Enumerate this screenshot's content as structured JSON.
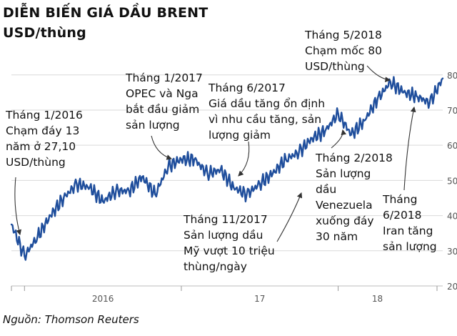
{
  "chart_data": {
    "type": "line",
    "title": "DIỄN BIẾN GIÁ DẦU BRENT",
    "subtitle": "USD/thùng",
    "source": "Nguồn: Thomson Reuters",
    "x_tick_labels": [
      "2016",
      "17",
      "18"
    ],
    "y_ticks": [
      20,
      30,
      40,
      50,
      60,
      70,
      80
    ],
    "ylim": [
      20,
      83
    ],
    "grid": true,
    "series": [
      {
        "color": "#1f4e9c",
        "x": [
          "2015-12",
          "2016-01",
          "2016-02",
          "2016-03",
          "2016-04",
          "2016-05",
          "2016-06",
          "2016-07",
          "2016-08",
          "2016-09",
          "2016-10",
          "2016-11",
          "2016-12",
          "2017-01",
          "2017-02",
          "2017-03",
          "2017-04",
          "2017-05",
          "2017-06",
          "2017-07",
          "2017-08",
          "2017-09",
          "2017-10",
          "2017-11",
          "2017-12",
          "2018-01",
          "2018-02",
          "2018-03",
          "2018-04",
          "2018-05",
          "2018-06",
          "2018-07",
          "2018-08",
          "2018-09"
        ],
        "values": [
          37.5,
          28.5,
          34,
          40,
          45,
          49,
          48,
          44,
          47,
          47,
          51,
          46,
          54,
          56,
          56,
          52,
          53,
          48,
          46,
          49,
          52,
          56,
          58,
          62,
          64,
          69,
          63,
          67,
          73,
          78,
          75,
          74,
          72,
          79
        ]
      }
    ],
    "annotations": [
      {
        "id": "jan2016",
        "lines": [
          "Tháng 1/2016",
          "Chạm đáy 13",
          "năm ở 27,10",
          "USD/thùng"
        ]
      },
      {
        "id": "jan2017",
        "lines": [
          "Tháng 1/2017",
          "OPEC và Nga",
          "bắt đầu giảm",
          "sản lượng"
        ]
      },
      {
        "id": "jun2017",
        "lines": [
          "Tháng 6/2017",
          "Giá dầu tăng ổn định",
          "vì nhu cầu tăng, sản",
          "lượng giảm"
        ]
      },
      {
        "id": "nov2017",
        "lines": [
          "Tháng 11/2017",
          "Sản lượng dầu",
          "Mỹ vượt 10 triệu",
          "thùng/ngày"
        ]
      },
      {
        "id": "feb2018",
        "lines": [
          "Tháng 2/2018",
          "Sản lượng",
          "dầu",
          "Venezuela",
          "xuống đáy",
          "30 năm"
        ]
      },
      {
        "id": "may2018",
        "lines": [
          "Tháng 5/2018",
          "Chạm mốc 80",
          "USD/thùng"
        ]
      },
      {
        "id": "jun2018",
        "lines": [
          "Tháng",
          "6/2018",
          "Iran tăng",
          "sản lượng"
        ]
      }
    ]
  }
}
